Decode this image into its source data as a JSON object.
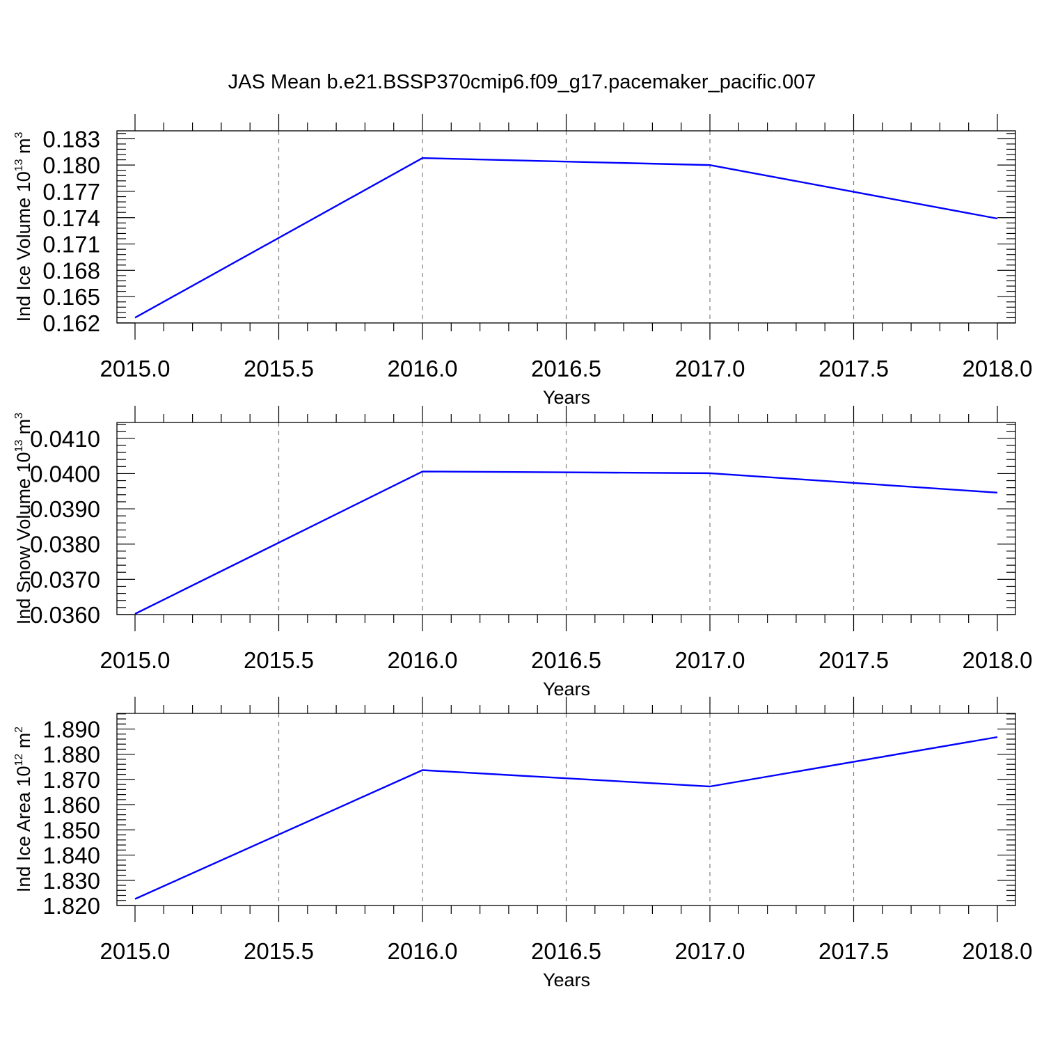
{
  "title": "JAS Mean b.e21.BSSP370cmip6.f09_g17.pacemaker_pacific.007",
  "colors": {
    "line": "#0000ff",
    "grid": "#808080",
    "frame": "#000000"
  },
  "chart_data": [
    {
      "type": "line",
      "xlabel": "Years",
      "ylabel": {
        "text": "Ind Ice Volume 10",
        "exp": "13",
        "unit": " m",
        "unit_exp": "3"
      },
      "xlim": [
        2015.0,
        2018.0
      ],
      "ylim": [
        0.162,
        0.1839
      ],
      "x_ticks": [
        "2015.0",
        "2015.5",
        "2016.0",
        "2016.5",
        "2017.0",
        "2017.5",
        "2018.0"
      ],
      "y_ticks": [
        0.162,
        0.165,
        0.168,
        0.171,
        0.174,
        0.177,
        0.18,
        0.183
      ],
      "y_tick_labels": [
        "0.162",
        "0.165",
        "0.168",
        "0.171",
        "0.174",
        "0.177",
        "0.180",
        "0.183"
      ],
      "grid": "vertical dashed",
      "series": [
        {
          "x": [
            2015.0,
            2016.0,
            2017.0,
            2018.0
          ],
          "values": [
            0.1626,
            0.1808,
            0.18,
            0.1739
          ]
        }
      ]
    },
    {
      "type": "line",
      "xlabel": "Years",
      "ylabel": {
        "text": "Ind Snow Volume 10",
        "exp": "13",
        "unit": " m",
        "unit_exp": "3"
      },
      "xlim": [
        2015.0,
        2018.0
      ],
      "ylim": [
        0.036,
        0.04145
      ],
      "x_ticks": [
        "2015.0",
        "2015.5",
        "2016.0",
        "2016.5",
        "2017.0",
        "2017.5",
        "2018.0"
      ],
      "y_ticks": [
        0.036,
        0.037,
        0.038,
        0.039,
        0.04,
        0.041
      ],
      "y_tick_labels": [
        "0.0360",
        "0.0370",
        "0.0380",
        "0.0390",
        "0.0400",
        "0.0410"
      ],
      "grid": "vertical dashed",
      "series": [
        {
          "x": [
            2015.0,
            2016.0,
            2017.0,
            2018.0
          ],
          "values": [
            0.03602,
            0.04006,
            0.04001,
            0.03946
          ]
        }
      ]
    },
    {
      "type": "line",
      "xlabel": "Years",
      "ylabel": {
        "text": "Ind Ice Area 10",
        "exp": "12",
        "unit": " m",
        "unit_exp": "2"
      },
      "xlim": [
        2015.0,
        2018.0
      ],
      "ylim": [
        1.82,
        1.8962
      ],
      "x_ticks": [
        "2015.0",
        "2015.5",
        "2016.0",
        "2016.5",
        "2017.0",
        "2017.5",
        "2018.0"
      ],
      "y_ticks": [
        1.82,
        1.83,
        1.84,
        1.85,
        1.86,
        1.87,
        1.88,
        1.89
      ],
      "y_tick_labels": [
        "1.820",
        "1.830",
        "1.840",
        "1.850",
        "1.860",
        "1.870",
        "1.880",
        "1.890"
      ],
      "grid": "vertical dashed",
      "series": [
        {
          "x": [
            2015.0,
            2016.0,
            2017.0,
            2018.0
          ],
          "values": [
            1.8226,
            1.8737,
            1.8672,
            1.8868
          ]
        }
      ]
    }
  ]
}
